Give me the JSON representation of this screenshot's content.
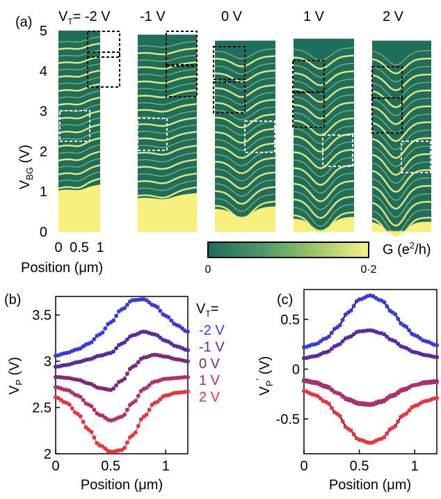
{
  "figure": {
    "panel_a": {
      "label": "(a)",
      "vt_prefix": "V",
      "vt_prefix_sub": "T",
      "vt_prefix_rest": "= -2 V",
      "column_titles": [
        "-1 V",
        "0 V",
        "1 V",
        "2 V"
      ],
      "ylabel_main": "V",
      "ylabel_sub": "BG",
      "ylabel_unit": " (V)",
      "yticks": [
        "0",
        "1",
        "2",
        "3",
        "4",
        "5"
      ],
      "xticks": [
        "0",
        "0.5",
        "1"
      ],
      "xlabel": "Position (μm)",
      "colorbar": {
        "label_main": "G (e",
        "label_sup": "2",
        "label_end": "/h)",
        "min_label": "0",
        "max_label": "0·2",
        "colors": [
          "#1f6b5a",
          "#4f9a6a",
          "#a6c96a",
          "#f6f38a"
        ]
      },
      "fill_colors": {
        "background": "#1f6e5c",
        "bright": "#f3ee7a",
        "mid": "#a8cc72",
        "saturated": "#f7f07c"
      }
    },
    "panel_b": {
      "label": "(b)",
      "legend_title_main": "V",
      "legend_title_sub": "T",
      "legend_title_end": "=",
      "legend_items": [
        "-2 V",
        "-1 V",
        "0 V",
        "1 V",
        "2 V"
      ],
      "ylabel_main": "V",
      "ylabel_sub": "P",
      "ylabel_unit": " (V)",
      "xlabel": "Position (μm)",
      "yticks": [
        "2",
        "2.5",
        "3",
        "3.5"
      ],
      "xticks": [
        "0",
        "0.5",
        "1"
      ]
    },
    "panel_c": {
      "label": "(c)",
      "ylabel_main": "V",
      "ylabel_sub": "P",
      "ylabel_sup": "'",
      "ylabel_unit": " (V)",
      "xlabel": "Position (μm)",
      "yticks": [
        "-0.5",
        "0",
        "0.5"
      ],
      "xticks": [
        "0",
        "0.5",
        "1"
      ]
    }
  },
  "chart_data": [
    {
      "type": "heatmap",
      "panel": "a",
      "xlabel": "Position (μm)",
      "ylabel": "V_BG (V)",
      "xlim": [
        0,
        1
      ],
      "ylim": [
        0,
        5
      ],
      "columns": [
        "V_T= -2 V",
        "-1 V",
        "0 V",
        "1 V",
        "2 V"
      ],
      "colorbar_range": [
        0,
        0.2
      ],
      "colorbar_label": "G (e^2/h)"
    },
    {
      "type": "scatter",
      "panel": "b",
      "xlabel": "Position (μm)",
      "ylabel": "V_P (V)",
      "xlim": [
        0,
        1.2
      ],
      "ylim": [
        2.0,
        3.7
      ],
      "x": [
        0.0,
        0.1,
        0.2,
        0.3,
        0.4,
        0.5,
        0.6,
        0.7,
        0.8,
        0.9,
        1.0,
        1.1,
        1.2
      ],
      "series": [
        {
          "name": "-2 V",
          "color": "#3a3ae0",
          "values": [
            3.06,
            3.09,
            3.13,
            3.19,
            3.29,
            3.42,
            3.56,
            3.66,
            3.67,
            3.6,
            3.49,
            3.39,
            3.32
          ]
        },
        {
          "name": "-1 V",
          "color": "#5a2aa0",
          "values": [
            2.94,
            2.96,
            2.99,
            3.02,
            3.06,
            3.09,
            3.19,
            3.28,
            3.32,
            3.29,
            3.22,
            3.16,
            3.12
          ]
        },
        {
          "name": "0 V",
          "color": "#7d2a7a",
          "values": [
            2.83,
            2.82,
            2.8,
            2.76,
            2.71,
            2.69,
            2.79,
            2.94,
            3.04,
            3.07,
            3.05,
            3.02,
            3.0
          ]
        },
        {
          "name": "1 V",
          "color": "#b0306a",
          "values": [
            2.72,
            2.69,
            2.63,
            2.53,
            2.42,
            2.36,
            2.4,
            2.55,
            2.7,
            2.78,
            2.81,
            2.82,
            2.83
          ]
        },
        {
          "name": "2 V",
          "color": "#e8343c",
          "values": [
            2.61,
            2.55,
            2.43,
            2.26,
            2.09,
            2.02,
            2.04,
            2.2,
            2.4,
            2.55,
            2.63,
            2.66,
            2.67
          ]
        }
      ]
    },
    {
      "type": "scatter",
      "panel": "c",
      "xlabel": "Position (μm)",
      "ylabel": "V_P' (V)",
      "xlim": [
        0,
        1.2
      ],
      "ylim": [
        -0.85,
        0.8
      ],
      "x": [
        0.0,
        0.1,
        0.2,
        0.3,
        0.4,
        0.5,
        0.6,
        0.7,
        0.8,
        0.9,
        1.0,
        1.1,
        1.2
      ],
      "series": [
        {
          "name": "-2 V",
          "color": "#3a3ae0",
          "values": [
            0.22,
            0.25,
            0.31,
            0.42,
            0.57,
            0.7,
            0.74,
            0.69,
            0.57,
            0.44,
            0.34,
            0.28,
            0.24
          ]
        },
        {
          "name": "-1 V",
          "color": "#5a2aa0",
          "values": [
            0.11,
            0.13,
            0.17,
            0.24,
            0.32,
            0.38,
            0.39,
            0.36,
            0.29,
            0.22,
            0.17,
            0.14,
            0.12
          ]
        },
        {
          "name": "0 V",
          "color": "#7d2a7a",
          "values": [
            -0.11,
            -0.13,
            -0.17,
            -0.24,
            -0.31,
            -0.35,
            -0.36,
            -0.33,
            -0.27,
            -0.21,
            -0.16,
            -0.13,
            -0.12
          ]
        },
        {
          "name": "1 V",
          "color": "#b0306a",
          "values": [
            -0.12,
            -0.14,
            -0.18,
            -0.24,
            -0.3,
            -0.34,
            -0.35,
            -0.32,
            -0.26,
            -0.2,
            -0.16,
            -0.14,
            -0.13
          ]
        },
        {
          "name": "2 V",
          "color": "#e8343c",
          "values": [
            -0.22,
            -0.26,
            -0.33,
            -0.45,
            -0.6,
            -0.71,
            -0.74,
            -0.7,
            -0.59,
            -0.46,
            -0.37,
            -0.32,
            -0.29
          ]
        }
      ]
    }
  ]
}
